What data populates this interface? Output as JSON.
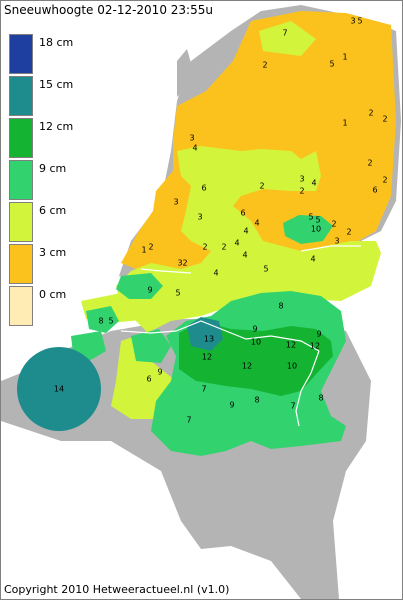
{
  "header": {
    "title": "Sneeuwhoogte 02-12-2010 23:55u"
  },
  "footer": {
    "copyright": "Copyright 2010 Hetweeractueel.nl (v1.0)"
  },
  "legend": {
    "items": [
      {
        "label": "18 cm",
        "color": "#1f3fa0"
      },
      {
        "label": "15 cm",
        "color": "#1e8c8c"
      },
      {
        "label": "12 cm",
        "color": "#14b432"
      },
      {
        "label": "9 cm",
        "color": "#32d26e"
      },
      {
        "label": "6 cm",
        "color": "#d2f53c"
      },
      {
        "label": "3 cm",
        "color": "#fbc21e"
      },
      {
        "label": "0 cm",
        "color": "#ffebb4"
      }
    ]
  },
  "map": {
    "land_color": "#b4b4b4",
    "sea_color": "#ffffff",
    "station_values": [
      "3",
      "5",
      "7",
      "2",
      "5",
      "1",
      "2",
      "2",
      "1",
      "2",
      "3",
      "4",
      "6",
      "2",
      "3",
      "2",
      "4",
      "6",
      "2",
      "3",
      "3",
      "6",
      "4",
      "5",
      "5",
      "10",
      "2",
      "1",
      "2",
      "3",
      "2",
      "2",
      "4",
      "4",
      "2",
      "2",
      "3",
      "4",
      "4",
      "5",
      "4",
      "9",
      "5",
      "8",
      "8",
      "5",
      "13",
      "9",
      "10",
      "12",
      "12",
      "9",
      "12",
      "12",
      "10",
      "9",
      "6",
      "14",
      "7",
      "9",
      "8",
      "7",
      "8",
      "7"
    ]
  }
}
